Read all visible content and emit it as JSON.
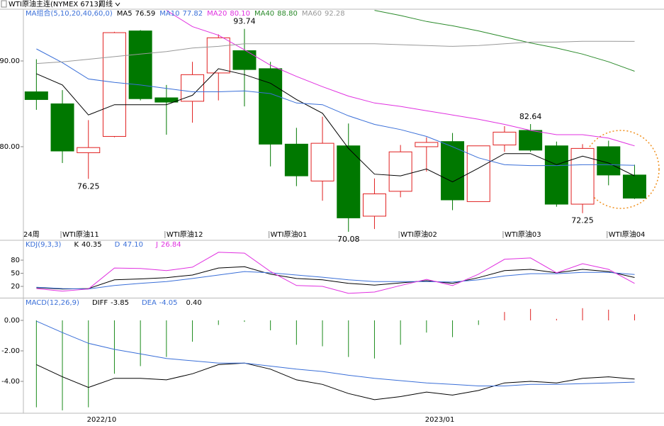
{
  "symbol": "WTI原油主连(NYMEX 6713)",
  "period": "周线",
  "chart_data": [
    {
      "type": "candlestick",
      "indicator": "MA组合(5,10,20,40,60,0)",
      "period_label": "24周",
      "categories": [
        null,
        "WTI原油11",
        null,
        null,
        null,
        "WTI原油12",
        null,
        null,
        null,
        "WTI原油01",
        null,
        null,
        null,
        null,
        "WTI原油02",
        null,
        null,
        null,
        "WTI原油03",
        null,
        null,
        null,
        "WTI原油04",
        null
      ],
      "open": [
        86.4,
        85.0,
        79.3,
        81.2,
        93.5,
        85.7,
        85.3,
        88.6,
        91.2,
        89.1,
        80.3,
        76.0,
        80.1,
        71.9,
        74.8,
        80.0,
        80.6,
        73.6,
        80.2,
        81.9,
        80.1,
        73.3,
        80.0,
        76.7
      ],
      "high": [
        90.2,
        86.6,
        83.1,
        93.4,
        93.6,
        87.2,
        89.9,
        93.1,
        93.74,
        89.9,
        82.2,
        83.5,
        82.7,
        76.3,
        80.2,
        81.1,
        81.6,
        80.1,
        82.4,
        82.64,
        80.6,
        80.3,
        80.7,
        77.9
      ],
      "low": [
        84.3,
        78.1,
        76.25,
        81.1,
        85.4,
        81.4,
        82.8,
        85.4,
        84.7,
        77.7,
        75.4,
        73.7,
        70.08,
        70.4,
        74.1,
        77.1,
        72.6,
        73.6,
        79.4,
        79.4,
        73.0,
        72.25,
        75.5,
        73.9
      ],
      "close": [
        85.5,
        79.5,
        79.9,
        93.3,
        85.6,
        85.2,
        88.4,
        92.7,
        89.0,
        80.3,
        76.6,
        80.4,
        71.7,
        74.5,
        79.4,
        80.5,
        73.8,
        80.1,
        81.7,
        79.6,
        73.3,
        79.8,
        76.7,
        74.0
      ],
      "high_labels": [
        null,
        null,
        null,
        null,
        null,
        null,
        null,
        null,
        "93.74",
        null,
        null,
        null,
        null,
        null,
        null,
        null,
        null,
        null,
        null,
        "82.64",
        null,
        null,
        null,
        null
      ],
      "low_labels": [
        null,
        null,
        "76.25",
        null,
        null,
        null,
        null,
        null,
        null,
        null,
        null,
        null,
        "70.08",
        null,
        null,
        null,
        null,
        null,
        null,
        null,
        null,
        "72.25",
        null,
        null
      ],
      "up_color": "#e02020",
      "down_color": "#007800",
      "high_label_color": "#e02020",
      "low_label_color": "#1a7a1a",
      "ylim": [
        69.17,
        95.95
      ],
      "yticks": [
        {
          "value": 90,
          "label": "90.00"
        },
        {
          "value": 80,
          "label": "80.00"
        }
      ],
      "series": [
        {
          "name": "MA5",
          "color": "#000000",
          "readout": "76.59",
          "values": [
            88.5,
            87.2,
            83.7,
            84.9,
            84.9,
            84.9,
            86.0,
            89.1,
            88.4,
            87.4,
            85.5,
            83.9,
            79.8,
            76.8,
            76.6,
            77.4,
            75.9,
            77.5,
            79.2,
            79.2,
            77.9,
            78.9,
            78.1,
            76.59
          ]
        },
        {
          "name": "MA10",
          "color": "#3a6fd8",
          "readout": "77.82",
          "values": [
            91.4,
            89.8,
            87.9,
            87.5,
            87.2,
            86.8,
            86.4,
            86.4,
            86.5,
            86.2,
            85.1,
            84.9,
            83.6,
            82.6,
            82.0,
            81.2,
            80.0,
            78.7,
            77.9,
            77.8,
            77.8,
            77.9,
            77.9,
            77.82
          ]
        },
        {
          "name": "MA20",
          "color": "#e030e0",
          "readout": "80.10",
          "values": [
            null,
            null,
            null,
            null,
            null,
            95.9,
            94.0,
            93.0,
            91.3,
            89.5,
            88.2,
            87.0,
            85.9,
            85.1,
            84.7,
            84.2,
            83.7,
            83.2,
            82.6,
            81.9,
            81.4,
            81.4,
            81.0,
            80.1
          ]
        },
        {
          "name": "MA40",
          "color": "#2a8a2a",
          "readout": "88.80",
          "values": [
            null,
            null,
            null,
            null,
            null,
            null,
            null,
            null,
            null,
            null,
            null,
            null,
            null,
            95.9,
            95.3,
            94.6,
            94.1,
            93.5,
            92.8,
            92.1,
            91.5,
            90.8,
            89.9,
            88.8
          ]
        },
        {
          "name": "MA60",
          "color": "#999999",
          "readout": "92.28",
          "values": [
            89.7,
            89.9,
            90.2,
            90.5,
            90.8,
            91.1,
            91.5,
            91.7,
            92.0,
            92.0,
            92.0,
            92.0,
            92.0,
            92.0,
            91.9,
            91.8,
            91.7,
            91.8,
            92.0,
            92.2,
            92.2,
            92.3,
            92.3,
            92.28
          ]
        }
      ]
    },
    {
      "type": "line",
      "indicator": "KDJ(9,3,3)",
      "ylim": [
        -5.9,
        123.8
      ],
      "yticks": [
        80,
        50,
        20
      ],
      "series": [
        {
          "name": "K",
          "color": "#000000",
          "readout": "40.35",
          "values": [
            17,
            14,
            15,
            35,
            37,
            40,
            46,
            62,
            65,
            48,
            38,
            35,
            27,
            23,
            28,
            33,
            27,
            40,
            56,
            59,
            51,
            59,
            54,
            40.35
          ]
        },
        {
          "name": "D",
          "color": "#3a6fd8",
          "readout": "47.10",
          "values": [
            18,
            15,
            14,
            22,
            27,
            31,
            38,
            46,
            54,
            51,
            46,
            41,
            35,
            31,
            31,
            31,
            30,
            35,
            44,
            49,
            49,
            52,
            52,
            47.1
          ]
        },
        {
          "name": "J",
          "color": "#e030e0",
          "readout": "26.84",
          "values": [
            15,
            9,
            14,
            62,
            61,
            56,
            64,
            98,
            96,
            54,
            22,
            20,
            4,
            7,
            22,
            36,
            22,
            48,
            82,
            85,
            51,
            72,
            59,
            26.84
          ]
        }
      ]
    },
    {
      "type": "macd",
      "indicator": "MACD(12,26,9)",
      "categories": [
        null,
        null,
        null,
        "2022/10",
        null,
        null,
        null,
        null,
        null,
        null,
        null,
        null,
        null,
        null,
        null,
        null,
        "2023/01",
        null,
        null,
        null,
        null,
        null,
        null,
        null
      ],
      "ylim": [
        -6.09,
        1.44
      ],
      "yticks": [
        {
          "value": 0,
          "label": "0.00"
        },
        {
          "value": -2,
          "label": "-2.00"
        },
        {
          "value": -4,
          "label": "-4.00"
        }
      ],
      "bars": {
        "readout": "0.40",
        "up_color": "#e02020",
        "down_color": "#1a8a1a",
        "values": [
          -5.7,
          -5.9,
          -5.7,
          -3.5,
          -3.0,
          -2.4,
          -1.4,
          -0.3,
          -0.1,
          -0.65,
          -1.6,
          -1.7,
          -2.4,
          -2.5,
          -1.6,
          -0.8,
          -1.1,
          -0.3,
          0.55,
          0.75,
          0.1,
          0.8,
          0.7,
          0.4
        ]
      },
      "series": [
        {
          "name": "DIFF",
          "color": "#000000",
          "readout": "-3.85",
          "values": [
            -2.9,
            -3.7,
            -4.4,
            -3.8,
            -3.8,
            -3.9,
            -3.5,
            -2.9,
            -2.8,
            -3.2,
            -3.9,
            -4.2,
            -4.8,
            -5.2,
            -5.0,
            -4.7,
            -4.9,
            -4.6,
            -4.1,
            -4.0,
            -4.1,
            -3.8,
            -3.7,
            -3.85
          ]
        },
        {
          "name": "DEA",
          "color": "#3a6fd8",
          "readout": "-4.05",
          "values": [
            -0.05,
            -0.8,
            -1.5,
            -1.9,
            -2.2,
            -2.5,
            -2.65,
            -2.8,
            -2.8,
            -3.0,
            -3.2,
            -3.35,
            -3.6,
            -3.8,
            -3.95,
            -4.1,
            -4.2,
            -4.3,
            -4.3,
            -4.2,
            -4.2,
            -4.15,
            -4.1,
            -4.05
          ]
        }
      ]
    }
  ]
}
